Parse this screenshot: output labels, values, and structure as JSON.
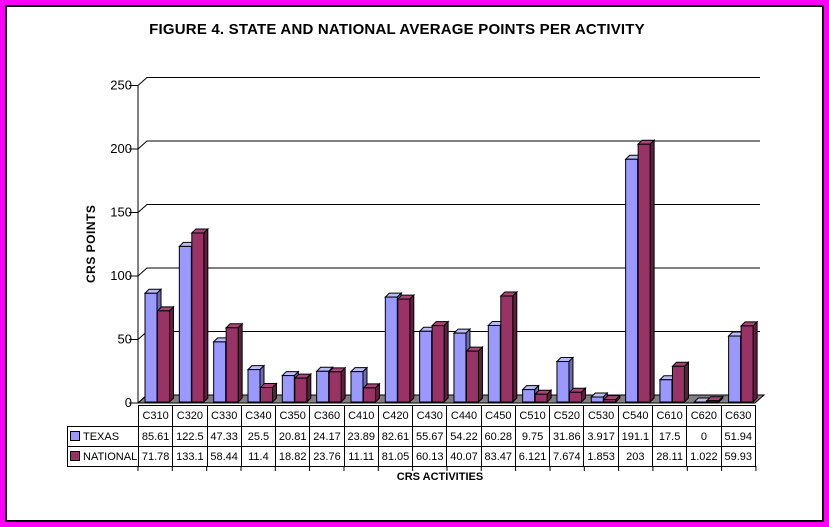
{
  "title": "FIGURE 4. STATE AND NATIONAL AVERAGE POINTS PER ACTIVITY",
  "y_axis": {
    "title": "CRS POINTS",
    "ticks": [
      0,
      50,
      100,
      150,
      200,
      250
    ]
  },
  "x_axis": {
    "title": "CRS ACTIVITIES"
  },
  "colors": {
    "page_border": "#FF00FF",
    "floor": "#808080",
    "line": "#000000"
  },
  "chart_data": {
    "type": "bar",
    "title": "FIGURE 4. STATE AND NATIONAL AVERAGE POINTS PER ACTIVITY",
    "xlabel": "CRS ACTIVITIES",
    "ylabel": "CRS POINTS",
    "ylim": [
      0,
      250
    ],
    "grid": true,
    "legend_position": "table-left",
    "style": "3d-clustered-bar",
    "categories": [
      "C310",
      "C320",
      "C330",
      "C340",
      "C350",
      "C360",
      "C410",
      "C420",
      "C430",
      "C440",
      "C450",
      "C510",
      "C520",
      "C530",
      "C540",
      "C610",
      "C620",
      "C630"
    ],
    "series": [
      {
        "name": "TEXAS",
        "colors": {
          "face": "#9999FF",
          "top": "#BCBCF4",
          "side": "#6C6CB4"
        },
        "values": [
          85.61,
          122.5,
          47.33,
          25.5,
          20.81,
          24.17,
          23.89,
          82.61,
          55.67,
          54.22,
          60.28,
          9.75,
          31.86,
          3.917,
          191.1,
          17.5,
          0,
          51.94
        ]
      },
      {
        "name": "NATIONAL",
        "colors": {
          "face": "#993366",
          "top": "#AA4477",
          "side": "#5E1F3F"
        },
        "values": [
          71.78,
          133.1,
          58.44,
          11.4,
          18.82,
          23.76,
          11.11,
          81.05,
          60.13,
          40.07,
          83.47,
          6.121,
          7.674,
          1.853,
          203,
          28.11,
          1.022,
          59.93
        ]
      }
    ]
  }
}
